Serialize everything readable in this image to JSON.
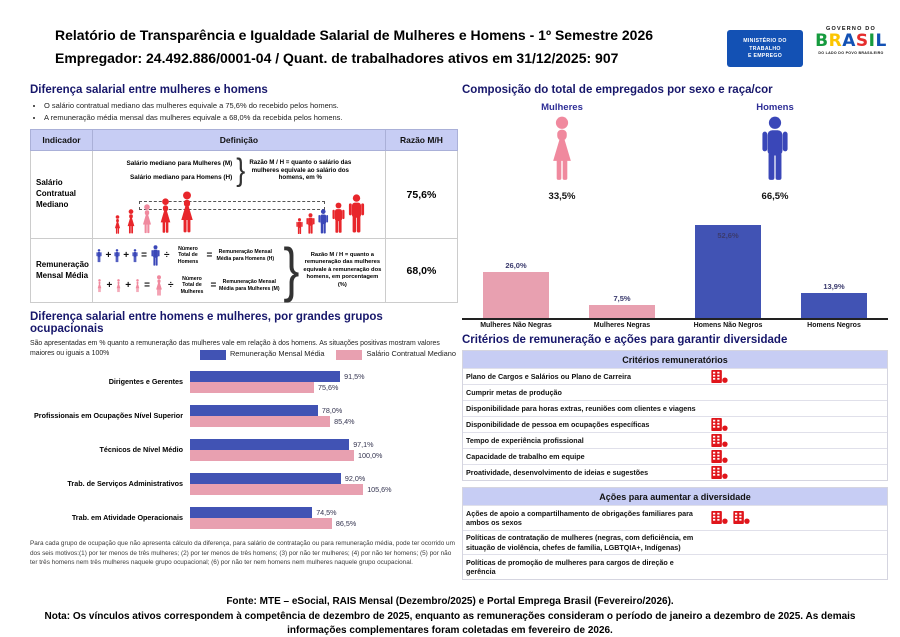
{
  "header": {
    "title_line1": "Relatório de Transparência e Igualdade Salarial de Mulheres e Homens - 1º Semestre 2026",
    "title_line2": "Empregador: 24.492.886/0001-04 / Quant. de trabalhadores ativos em 31/12/2025: 907",
    "ministry_logo": {
      "lines": [
        "MINISTÉRIO DO",
        "TRABALHO",
        "E EMPREGO"
      ],
      "bg_color": "#1351B4"
    },
    "gov_logo": {
      "top": "GOVERNO DO",
      "letters": [
        "B",
        "R",
        "A",
        "S",
        "I",
        "L"
      ],
      "tagline": "DO LADO DO POVO BRASILEIRO"
    }
  },
  "salary_gap": {
    "title": "Diferença salarial entre mulheres e homens",
    "bullets": [
      "O salário contratual mediano das mulheres equivale a 75,6% do recebido pelos homens.",
      "A remuneração média mensal das mulheres equivale a 68,0% da recebida pelos homens."
    ],
    "table": {
      "headers": [
        "Indicador",
        "Definição",
        "Razão M/H"
      ],
      "row_median": {
        "indicator": "Salário Contratual Mediano",
        "def_line_women": "Salário mediano para Mulheres (M)",
        "def_line_men": "Salário mediano para Homens (H)",
        "brace": "}",
        "note": "Razão M / H = quanto o salário das mulheres equivale ao salário dos homens, em %",
        "ratio": "75,6%"
      },
      "row_mean": {
        "indicator": "Remuneração Mensal Média",
        "ops": {
          "plus": "+",
          "eq": "=",
          "div": "÷"
        },
        "men_divisor": "Número Total de Homens",
        "men_result": "Remuneração Mensal Média para Homens (H)",
        "women_divisor": "Número Total de Mulheres",
        "women_result": "Remuneração Mensal Média para Mulheres (M)",
        "brace": "}",
        "note": "Razão M / H = quanto a remuneração das mulheres equivale à remuneração dos homens, em porcentagem (%)",
        "ratio": "68,0%"
      }
    }
  },
  "composition": {
    "title": "Composição do total de empregados por sexo e raça/cor",
    "women_label": "Mulheres",
    "women_pct": "33,5%",
    "men_label": "Homens",
    "men_pct": "66,5%"
  },
  "occupational": {
    "title": "Diferença salarial entre homens e mulheres, por grandes grupos ocupacionais",
    "subtitle": "São apresentadas em % quanto a remuneração das mulheres vale em relação à dos homens. As situações positivas mostram valores maiores ou iguais a 100%",
    "footnote": "Para cada grupo de ocupação que não apresenta cálculo da diferença, para salário de contratação ou para remuneração média, pode ter ocorrido um dos seis motivos:(1) por ter menos de três mulheres; (2) por ter menos de três homens; (3) por não ter mulheres; (4) por não ter homens; (5) por não ter três homens nem três mulheres naquele grupo ocupacional; (6) por não ter nem homens nem mulheres naquele grupo ocupacional."
  },
  "criteria": {
    "title": "Critérios de remuneração e ações para garantir diversidade",
    "remuneration": {
      "header": "Critérios remuneratórios",
      "rows": [
        {
          "label": "Plano de Cargos e Salários ou Plano de Carreira",
          "marks": 1
        },
        {
          "label": "Cumprir metas de produção",
          "marks": 0
        },
        {
          "label": "Disponibilidade para horas extras, reuniões com clientes e viagens",
          "marks": 0
        },
        {
          "label": "Disponibilidade de pessoa em ocupações específicas",
          "marks": 1
        },
        {
          "label": "Tempo de experiência profissional",
          "marks": 1
        },
        {
          "label": "Capacidade de trabalho em equipe",
          "marks": 1
        },
        {
          "label": "Proatividade, desenvolvimento de ideias e sugestões",
          "marks": 1
        }
      ]
    },
    "diversity": {
      "header": "Ações para aumentar a diversidade",
      "rows": [
        {
          "label": "Ações de apoio a compartilhamento de obrigações familiares para ambos os sexos",
          "marks": 2
        },
        {
          "label": "Políticas de contratação de mulheres (negras, com deficiência, em situação de violência, chefes de família, LGBTQIA+, Indígenas)",
          "marks": 0
        },
        {
          "label": "Políticas de promoção de mulheres para cargos de direção e gerência",
          "marks": 0
        }
      ]
    }
  },
  "footer": {
    "fonte": "Fonte: MTE – eSocial, RAIS Mensal (Dezembro/2025) e Portal Emprega Brasil (Fevereiro/2026).",
    "nota": "Nota: Os vínculos ativos correspondem à competência de dezembro de 2025, enquanto as remunerações consideram o período de janeiro a dezembro de 2025. As demais informações complementares foram coletadas em fevereiro de 2026."
  },
  "colors": {
    "series_blue": "#4153B4",
    "series_pink": "#E8A0B0",
    "female_pink": "#F0899E",
    "male_blue": "#3A47B8",
    "figure_red": "#E8262B",
    "header_lavender": "#C7CDF4",
    "mark_red": "#E0151B",
    "title_navy": "#17176B"
  },
  "chart_data": [
    {
      "type": "bar",
      "title": "Composição do total de empregados por sexo e raça/cor",
      "categories": [
        "Mulheres Não Negras",
        "Mulheres Negras",
        "Homens Não Negros",
        "Homens Negros"
      ],
      "values": [
        26.0,
        7.5,
        52.6,
        13.9
      ],
      "value_labels": [
        "26,0%",
        "7,5%",
        "52,6%",
        "13,9%"
      ],
      "colors": [
        "#E8A0B0",
        "#E8A0B0",
        "#4153B4",
        "#4153B4"
      ],
      "ylim": [
        0,
        60
      ],
      "grid": false,
      "legend_position": "none",
      "gender_totals": {
        "Mulheres": 33.5,
        "Homens": 66.5
      }
    },
    {
      "type": "bar",
      "orientation": "horizontal",
      "title": "Diferença salarial entre homens e mulheres, por grandes grupos ocupacionais",
      "categories": [
        "Dirigentes e Gerentes",
        "Profissionais em Ocupações Nível Superior",
        "Técnicos de Nível Médio",
        "Trab. de Serviços Administrativos",
        "Trab. em Atividade Operacionais"
      ],
      "series": [
        {
          "name": "Remuneração Mensal Média",
          "color": "#4153B4",
          "values": [
            91.5,
            78.0,
            97.1,
            92.0,
            74.5
          ],
          "value_labels": [
            "91,5%",
            "78,0%",
            "97,1%",
            "92,0%",
            "74,5%"
          ]
        },
        {
          "name": "Salário Contratual Mediano",
          "color": "#E8A0B0",
          "values": [
            75.6,
            85.4,
            100.0,
            105.6,
            86.5
          ],
          "value_labels": [
            "75,6%",
            "85,4%",
            "100,0%",
            "105,6%",
            "86,5%"
          ]
        }
      ],
      "xlim": [
        0,
        110
      ],
      "grid": false,
      "legend_position": "top-right"
    }
  ]
}
